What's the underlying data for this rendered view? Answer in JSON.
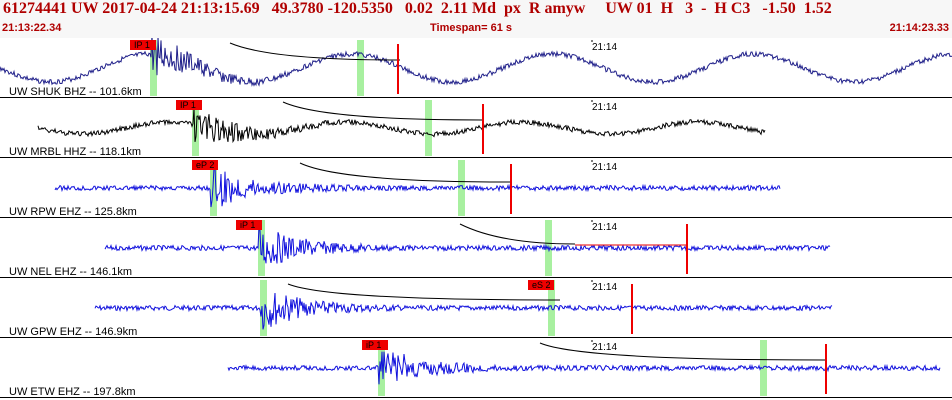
{
  "header": {
    "title": "61274441 UW 2017-04-24 21:13:15.69   49.3780 -120.5350   0.02  2.11 Md  px  R amyw     UW 01  H   3  -  H C3   -1.50  1.52",
    "start_time": "21:13:22.34",
    "timespan": "Timespan=  61 s",
    "end_time": "21:14:23.33"
  },
  "colors": {
    "accent": "#b00000",
    "pick": "#ee0000",
    "window": "#a8f0a0",
    "blue": "#1010dd",
    "navy": "#20208a",
    "black": "#000000"
  },
  "traces": [
    {
      "label": "UW SHUK BHZ -- 101.6km",
      "tick": "21:14",
      "pick": "IP 1",
      "color": "navy"
    },
    {
      "label": "UW MRBL HHZ -- 118.1km",
      "tick": "21:14",
      "pick": "IP 1",
      "color": "black"
    },
    {
      "label": "UW RPW EHZ -- 125.8km",
      "tick": "21:14",
      "pick": "eP 2",
      "color": "blue"
    },
    {
      "label": "UW NEL EHZ -- 146.1km",
      "tick": "21:14",
      "pick": "iP 1",
      "color": "blue"
    },
    {
      "label": "UW GPW EHZ -- 146.9km",
      "tick": "21:14",
      "pick": "eS 2",
      "color": "blue"
    },
    {
      "label": "UW ETW EHZ -- 197.8km",
      "tick": "21:14",
      "pick": "iP 1",
      "color": "blue"
    }
  ]
}
